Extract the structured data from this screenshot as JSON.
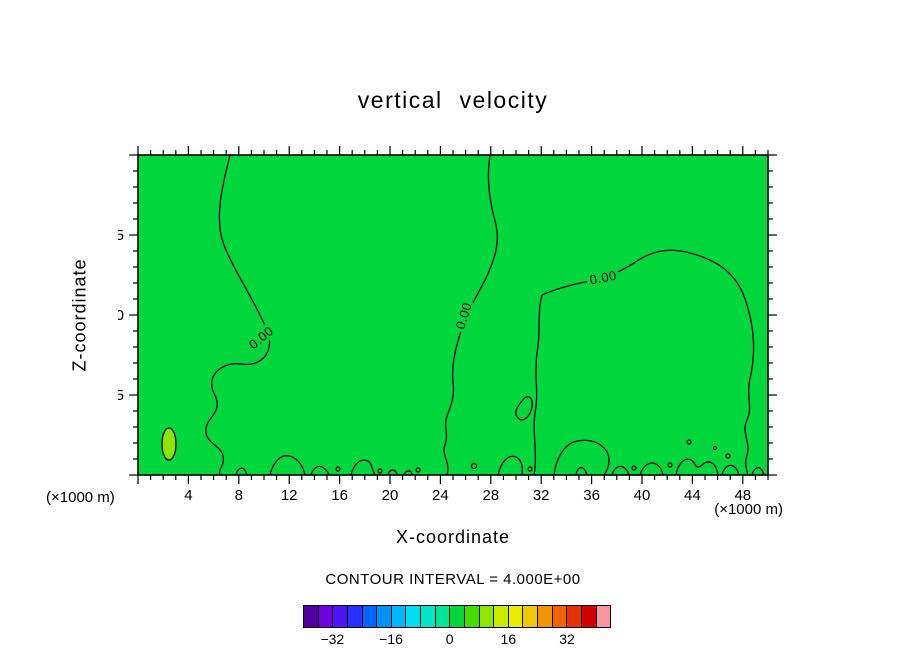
{
  "title": "vertical velocity",
  "plot": {
    "contour_label": "0.00"
  },
  "labels": {
    "xlabel": "X-coordinate",
    "ylabel": "Z-coordinate",
    "unit_left": "(×1000 m)",
    "unit_right": "(×1000 m)",
    "contour_note": "CONTOUR INTERVAL = 4.000E+00"
  },
  "style": {
    "plot_fill": "#00d73c",
    "cell_fill": "#8ce600",
    "contour_color": "#000000",
    "background": "#ffffff",
    "text_color": "#000000"
  },
  "chart_data": {
    "type": "heatmap",
    "subtype": "filled_contour",
    "title": "vertical velocity",
    "xlabel": "X-coordinate (×1000 m)",
    "ylabel": "Z-coordinate (×1000 m)",
    "x_range": [
      0,
      50
    ],
    "z_range": [
      0,
      20
    ],
    "x_major_ticks": [
      4,
      8,
      12,
      16,
      20,
      24,
      28,
      32,
      36,
      40,
      44,
      48
    ],
    "z_major_ticks": [
      5,
      10,
      15
    ],
    "minor_tick_step": 1,
    "contour_interval": 4.0,
    "labeled_contour_level": 0.0,
    "labeled_contour_text": "0.00",
    "colorbar": {
      "min": -40,
      "max": 44,
      "interval": 4,
      "tick_values": [
        -32,
        -16,
        0,
        16,
        32
      ],
      "tick_labels": [
        "−32",
        "−16",
        "0",
        "16",
        "32"
      ],
      "colors": [
        "#5000a0",
        "#7000dc",
        "#5014f5",
        "#2832ff",
        "#0064ff",
        "#0090ff",
        "#00b8ff",
        "#00dcf0",
        "#00e6c8",
        "#00e694",
        "#00d73c",
        "#46dc00",
        "#8ce600",
        "#c8ec00",
        "#ecec00",
        "#f0c800",
        "#f09600",
        "#f06400",
        "#e63200",
        "#d20000",
        "#f596a0"
      ]
    },
    "field_summary": "Vertical velocity is ~0 (0 to 4 band, green) over nearly the whole cross-section. A 0.00 contour descends from the top boundary near x~7 and x~28, and a broad 0.00 arc covers x~32-48 below z~14 dropping down the right side. Fine-scale contour structure hugs the lower boundary z<2, with one small closed cell of the next higher band near x~2.5, z~1.5."
  }
}
